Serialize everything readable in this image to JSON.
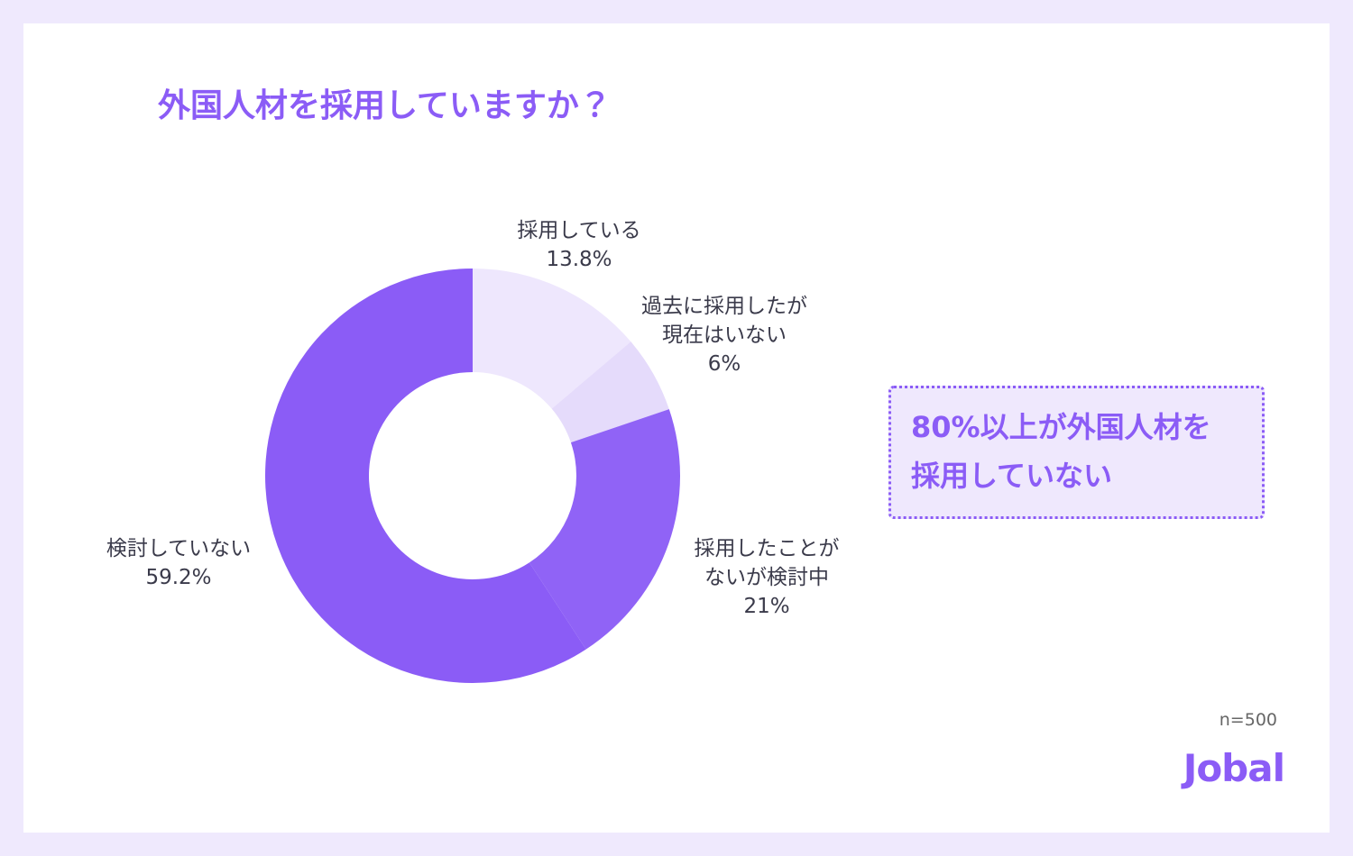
{
  "chart_data": {
    "type": "donut",
    "title": "外国人材を採用していますか？",
    "categories": [
      "採用している",
      "過去に採用したが\n現在はいない",
      "採用したことが\nないが検討中",
      "検討していない"
    ],
    "values": [
      13.8,
      6,
      21,
      59.2
    ],
    "value_labels": [
      "13.8%",
      "6%",
      "21%",
      "59.2%"
    ],
    "colors": [
      "#eee7fd",
      "#e5dbfb",
      "#9063f6",
      "#8b5cf6"
    ],
    "callout": "80%以上が外国人材を\n採用していない",
    "note": "n=500",
    "logo": "Jobal"
  }
}
